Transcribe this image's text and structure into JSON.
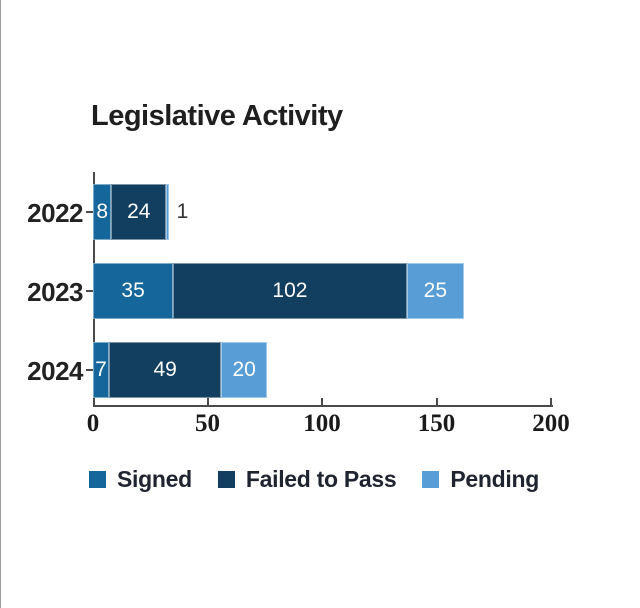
{
  "chart_data": {
    "type": "bar",
    "orientation": "horizontal",
    "stacked": true,
    "title": "Legislative Activity",
    "categories": [
      "2022",
      "2023",
      "2024"
    ],
    "series": [
      {
        "name": "Signed",
        "color": "#15679B",
        "values": [
          8,
          35,
          7
        ]
      },
      {
        "name": "Failed to Pass",
        "color": "#123F5F",
        "values": [
          24,
          102,
          49
        ]
      },
      {
        "name": "Pending",
        "color": "#589DD5",
        "values": [
          1,
          25,
          20
        ]
      }
    ],
    "xlim": [
      0,
      200
    ],
    "x_ticks": [
      0,
      50,
      100,
      150,
      200
    ],
    "grid": false,
    "legend_position": "bottom",
    "colors": {
      "axis": "#4A4A4A",
      "title_text": "#1F1F1F",
      "category_text": "#222222",
      "tick_text": "#1A1A1A",
      "value_label_inside": "#FFFFFF",
      "value_label_outside": "#333333",
      "background": "#FFFFFF"
    }
  }
}
